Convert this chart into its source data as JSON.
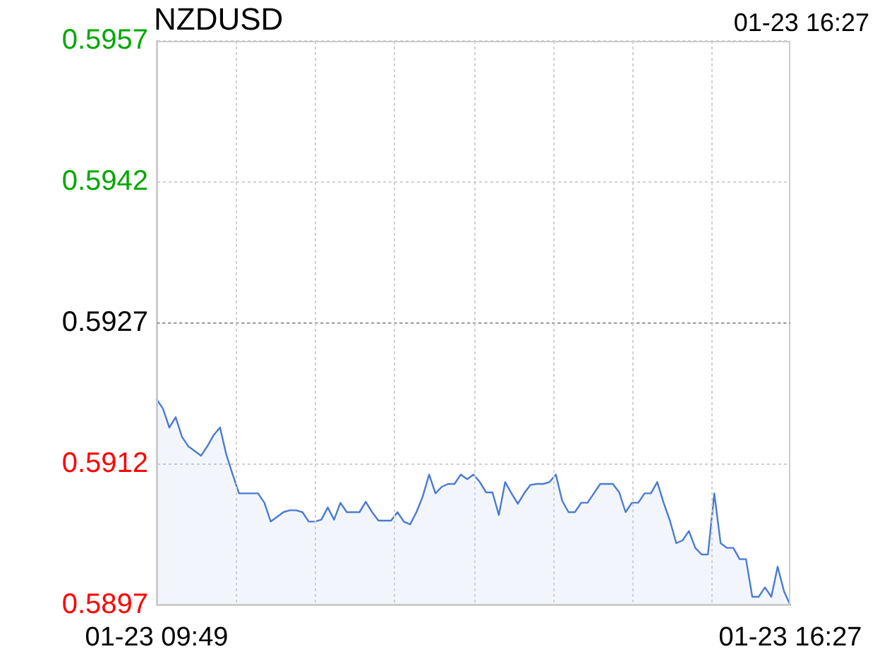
{
  "chart_data": {
    "type": "area",
    "title": "NZDUSD",
    "subtitle": "01-23 16:27",
    "color": "#4a7bd0",
    "grid": true,
    "categories": [
      "01-23 09:49",
      null,
      null,
      null,
      null,
      null,
      null,
      null,
      null,
      null,
      null,
      null,
      null,
      null,
      null,
      null,
      null,
      null,
      null,
      null,
      null,
      null,
      null,
      null,
      null,
      null,
      null,
      null,
      null,
      null,
      null,
      null,
      null,
      null,
      null,
      null,
      null,
      null,
      null,
      null,
      null,
      null,
      null,
      null,
      null,
      null,
      null,
      null,
      null,
      null,
      null,
      null,
      null,
      null,
      null,
      null,
      null,
      null,
      null,
      null,
      null,
      null,
      null,
      null,
      null,
      null,
      null,
      null,
      null,
      null,
      null,
      null,
      null,
      null,
      null,
      null,
      null,
      null,
      null,
      null,
      null,
      null,
      null,
      null,
      null,
      null,
      null,
      null,
      null,
      null,
      null,
      null,
      null,
      null,
      null,
      null,
      null,
      null,
      null,
      null,
      "01-23 16:27"
    ],
    "ylim": [
      0.5897,
      0.5957
    ],
    "yticks": [
      0.5897,
      0.5912,
      0.5927,
      0.5942,
      0.5957
    ],
    "ref_lines": [
      {
        "axis": "y",
        "value": 0.5927,
        "line_style": "dotted",
        "color": "#999999"
      }
    ],
    "values": [
      0.59189,
      0.59179,
      0.59159,
      0.5917,
      0.59149,
      0.59139,
      0.59134,
      0.59129,
      0.59139,
      0.59151,
      0.59159,
      0.5913,
      0.59109,
      0.59089,
      0.59089,
      0.59089,
      0.59089,
      0.59079,
      0.59059,
      0.59064,
      0.59069,
      0.59071,
      0.59071,
      0.59069,
      0.59059,
      0.59059,
      0.59061,
      0.59074,
      0.59061,
      0.59079,
      0.59069,
      0.59069,
      0.59069,
      0.5908,
      0.59069,
      0.5906,
      0.5906,
      0.5906,
      0.59069,
      0.59059,
      0.59056,
      0.59069,
      0.59086,
      0.59109,
      0.59089,
      0.59096,
      0.59099,
      0.59099,
      0.59109,
      0.59104,
      0.59109,
      0.59101,
      0.5909,
      0.5909,
      0.59066,
      0.59101,
      0.59089,
      0.59078,
      0.59089,
      0.59098,
      0.59099,
      0.59099,
      0.59101,
      0.59109,
      0.59081,
      0.59069,
      0.59069,
      0.59079,
      0.59079,
      0.59089,
      0.59099,
      0.59099,
      0.59099,
      0.5909,
      0.59069,
      0.59079,
      0.59079,
      0.59089,
      0.59089,
      0.59101,
      0.59079,
      0.5906,
      0.59036,
      0.59039,
      0.59049,
      0.59031,
      0.59024,
      0.59024,
      0.59089,
      0.59036,
      0.59031,
      0.59031,
      0.59019,
      0.59019,
      0.58979,
      0.58979,
      0.58989,
      0.58979,
      0.59011,
      0.58985,
      0.5897
    ]
  }
}
